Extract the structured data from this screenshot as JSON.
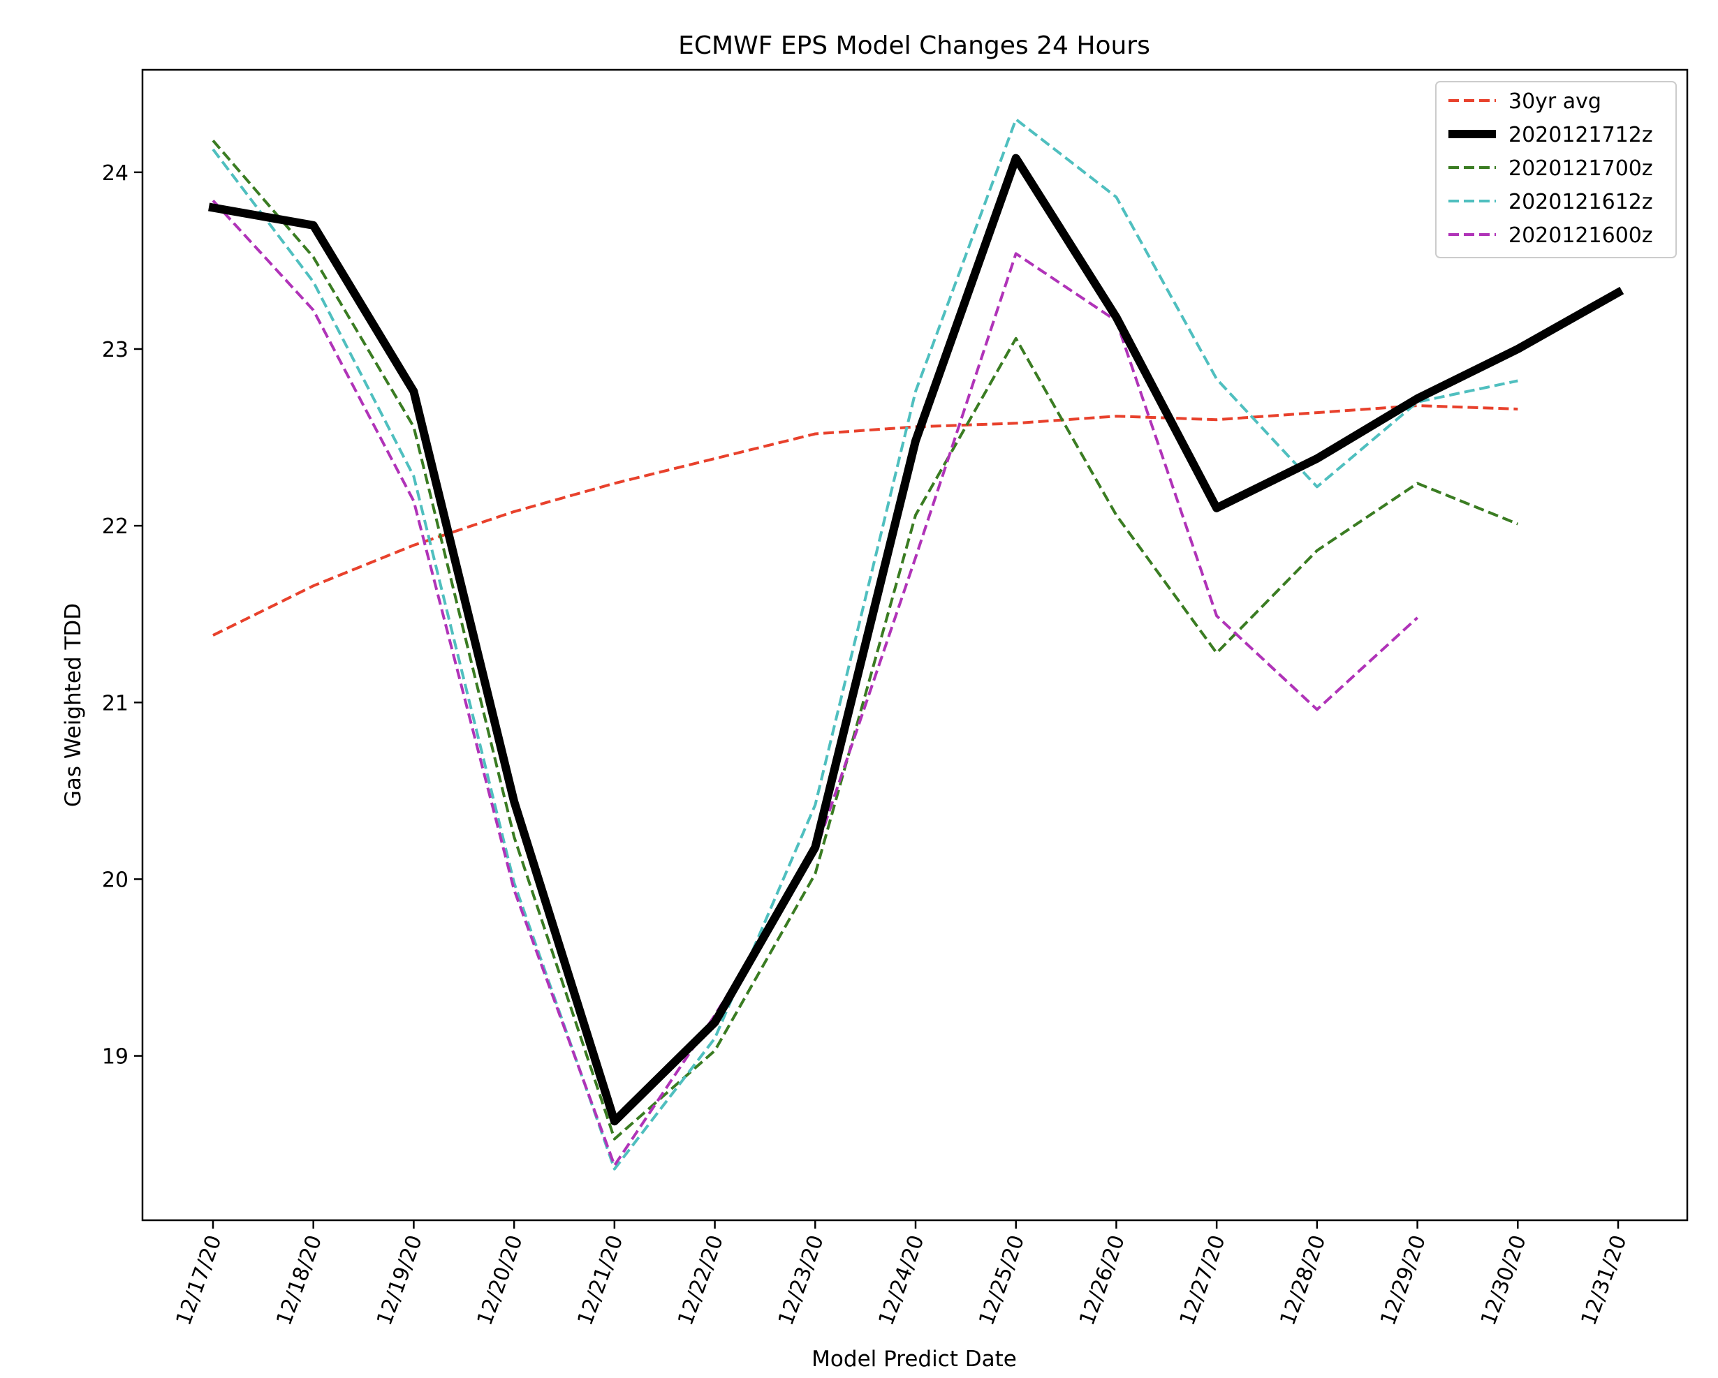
{
  "chart_data": {
    "type": "line",
    "title": "ECMWF EPS Model Changes 24 Hours",
    "xlabel": "Model Predict Date",
    "ylabel": "Gas Weighted TDD",
    "categories": [
      "12/17/20",
      "12/18/20",
      "12/19/20",
      "12/20/20",
      "12/21/20",
      "12/22/20",
      "12/23/20",
      "12/24/20",
      "12/25/20",
      "12/26/20",
      "12/27/20",
      "12/28/20",
      "12/29/20",
      "12/30/20",
      "12/31/20"
    ],
    "yticks": [
      "19",
      "20",
      "21",
      "22",
      "23",
      "24"
    ],
    "ylim": [
      18.07,
      24.58
    ],
    "grid": false,
    "legend_position": "top-right",
    "series": [
      {
        "name": "30yr avg",
        "color": "#e8412c",
        "style": "dashed",
        "width": 4,
        "values": [
          21.38,
          21.66,
          21.89,
          22.08,
          22.24,
          22.38,
          22.52,
          22.56,
          22.58,
          22.62,
          22.6,
          22.64,
          22.68,
          22.66,
          null
        ]
      },
      {
        "name": "2020121712z",
        "color": "#000000",
        "style": "solid",
        "width": 12,
        "values": [
          23.8,
          23.7,
          22.76,
          20.44,
          18.63,
          19.19,
          20.18,
          22.48,
          24.08,
          23.18,
          22.1,
          22.38,
          22.72,
          23.0,
          23.32
        ]
      },
      {
        "name": "2020121700z",
        "color": "#3a7c22",
        "style": "dashed",
        "width": 4,
        "values": [
          24.18,
          23.52,
          22.56,
          20.24,
          18.53,
          19.03,
          20.03,
          22.06,
          23.06,
          22.06,
          21.28,
          21.86,
          22.24,
          22.01,
          null
        ]
      },
      {
        "name": "2020121612z",
        "color": "#4fbfbf",
        "style": "dashed",
        "width": 4,
        "values": [
          24.13,
          23.38,
          22.28,
          19.98,
          18.36,
          19.1,
          20.42,
          22.76,
          24.3,
          23.86,
          22.83,
          22.22,
          22.7,
          22.82,
          null
        ]
      },
      {
        "name": "2020121600z",
        "color": "#b033b8",
        "style": "dashed",
        "width": 4,
        "values": [
          23.84,
          23.22,
          22.14,
          19.94,
          18.38,
          19.23,
          20.15,
          21.82,
          23.54,
          23.16,
          21.49,
          20.96,
          21.48,
          null,
          null
        ]
      }
    ]
  }
}
